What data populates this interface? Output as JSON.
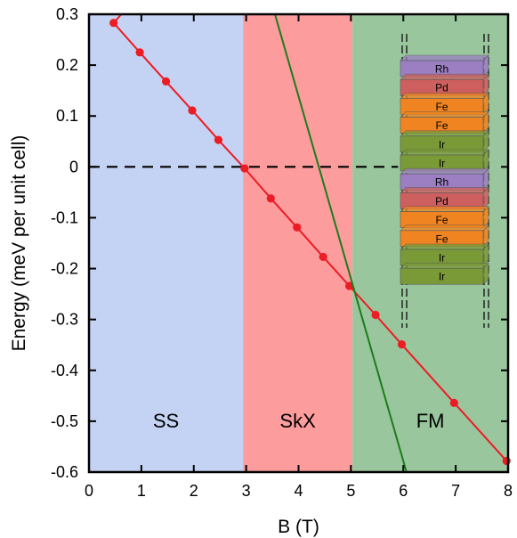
{
  "chart_data": {
    "type": "line",
    "title": "",
    "xlabel": "B (T)",
    "ylabel": "Energy (meV per unit cell)",
    "xlim": [
      0,
      8
    ],
    "ylim": [
      -0.6,
      0.3
    ],
    "xticks": [
      "0",
      "1",
      "2",
      "3",
      "4",
      "5",
      "6",
      "7",
      "8"
    ],
    "yticks": [
      "0.3",
      "0.2",
      "0.1",
      "0",
      "-0.1",
      "-0.2",
      "-0.3",
      "-0.4",
      "-0.5",
      "-0.6"
    ],
    "grid": false,
    "regions": [
      {
        "label": "SS",
        "x_range": [
          0,
          2.94
        ],
        "color": "#c4d3f3"
      },
      {
        "label": "SkX",
        "x_range": [
          2.94,
          5.03
        ],
        "color": "#fc9c9d"
      },
      {
        "label": "FM",
        "x_range": [
          5.03,
          8
        ],
        "color": "#9ac69d"
      }
    ],
    "series": [
      {
        "color": "#ec1c24",
        "markers": true,
        "x": [
          0.47,
          0.97,
          1.47,
          1.97,
          2.47,
          2.97,
          3.47,
          3.97,
          4.47,
          4.97,
          5.47,
          5.97,
          6.97,
          7.97
        ],
        "y": [
          0.283,
          0.225,
          0.168,
          0.111,
          0.053,
          -0.003,
          -0.062,
          -0.119,
          -0.177,
          -0.234,
          -0.291,
          -0.349,
          -0.464,
          -0.578
        ]
      },
      {
        "color": "#1b7c1b",
        "markers": false,
        "x": [
          3.55,
          6.06
        ],
        "y": [
          0.3,
          -0.6
        ]
      }
    ],
    "reference_line": {
      "y": 0,
      "style": "dashed",
      "color": "#000000",
      "x_range": [
        0,
        5.9
      ]
    }
  },
  "inset": {
    "layers": [
      {
        "label": "Rh",
        "color": "#9b7fc2"
      },
      {
        "label": "Pd",
        "color": "#cd5f5f"
      },
      {
        "label": "Fe",
        "color": "#f08420"
      },
      {
        "label": "Fe",
        "color": "#f08420"
      },
      {
        "label": "Ir",
        "color": "#7a9a38"
      },
      {
        "label": "Ir",
        "color": "#7a9a38"
      },
      {
        "label": "Rh",
        "color": "#9b7fc2"
      },
      {
        "label": "Pd",
        "color": "#cd5f5f"
      },
      {
        "label": "Fe",
        "color": "#f08420"
      },
      {
        "label": "Fe",
        "color": "#f08420"
      },
      {
        "label": "Ir",
        "color": "#7a9a38"
      },
      {
        "label": "Ir",
        "color": "#7a9a38"
      }
    ]
  }
}
